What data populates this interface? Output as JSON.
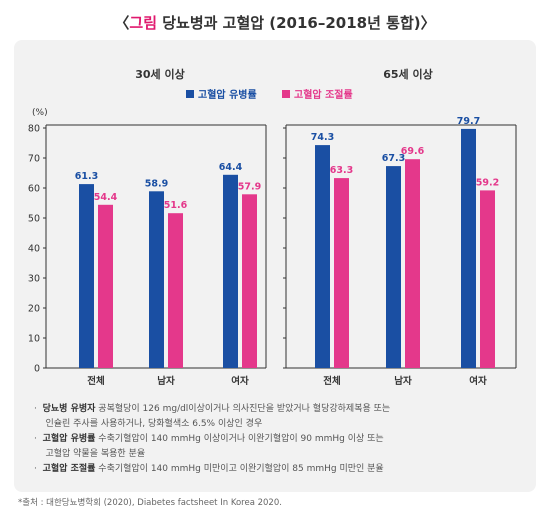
{
  "title": {
    "prefix": "〈",
    "accent": "그림",
    "main": " 당뇨병과 고혈압 (2016–2018년 통합)〉"
  },
  "colors": {
    "prevalence": "#1a4fa3",
    "control": "#e4388b"
  },
  "legend": {
    "prevalence": "고혈압 유병률",
    "control": "고혈압 조절률"
  },
  "chart_data": [
    {
      "type": "bar",
      "title": "30세 이상",
      "ylabel": "(%)",
      "ylim": [
        0,
        80
      ],
      "yticks": [
        0,
        10,
        20,
        30,
        40,
        50,
        60,
        70,
        80
      ],
      "categories": [
        "전체",
        "남자",
        "여자"
      ],
      "series": [
        {
          "name": "고혈압 유병률",
          "values": [
            61.3,
            58.9,
            64.4
          ]
        },
        {
          "name": "고혈압 조절률",
          "values": [
            54.4,
            51.6,
            57.9
          ]
        }
      ],
      "legend": "top-center",
      "grid": false
    },
    {
      "type": "bar",
      "title": "65세 이상",
      "ylim": [
        0,
        80
      ],
      "categories": [
        "전체",
        "남자",
        "여자"
      ],
      "series": [
        {
          "name": "고혈압 유병률",
          "values": [
            74.3,
            67.3,
            79.7
          ]
        },
        {
          "name": "고혈압 조절률",
          "values": [
            63.3,
            69.6,
            59.2
          ]
        }
      ],
      "legend": "top-center",
      "grid": false
    }
  ],
  "notes": [
    {
      "term": "당뇨병 유병자",
      "text": " 공복혈당이 126 mg/dl이상이거나 의사진단을 받았거나 혈당강하제복용 또는",
      "cont": "인슐린 주사를 사용하거나, 당화혈색소 6.5% 이상인 경우"
    },
    {
      "term": "고혈압 유병률",
      "text": " 수축기혈압이 140 mmHg 이상이거나 이완기혈압이 90 mmHg 이상 또는",
      "cont": "고혈압 약물을 복용한 분율"
    },
    {
      "term": "고혈압 조절률",
      "text": " 수축기혈압이 140 mmHg 미만이고 이완기혈압이 85 mmHg 미만인 분율",
      "cont": ""
    }
  ],
  "source": "*출처 : 대한당뇨병학회 (2020), Diabetes factsheet In Korea 2020."
}
